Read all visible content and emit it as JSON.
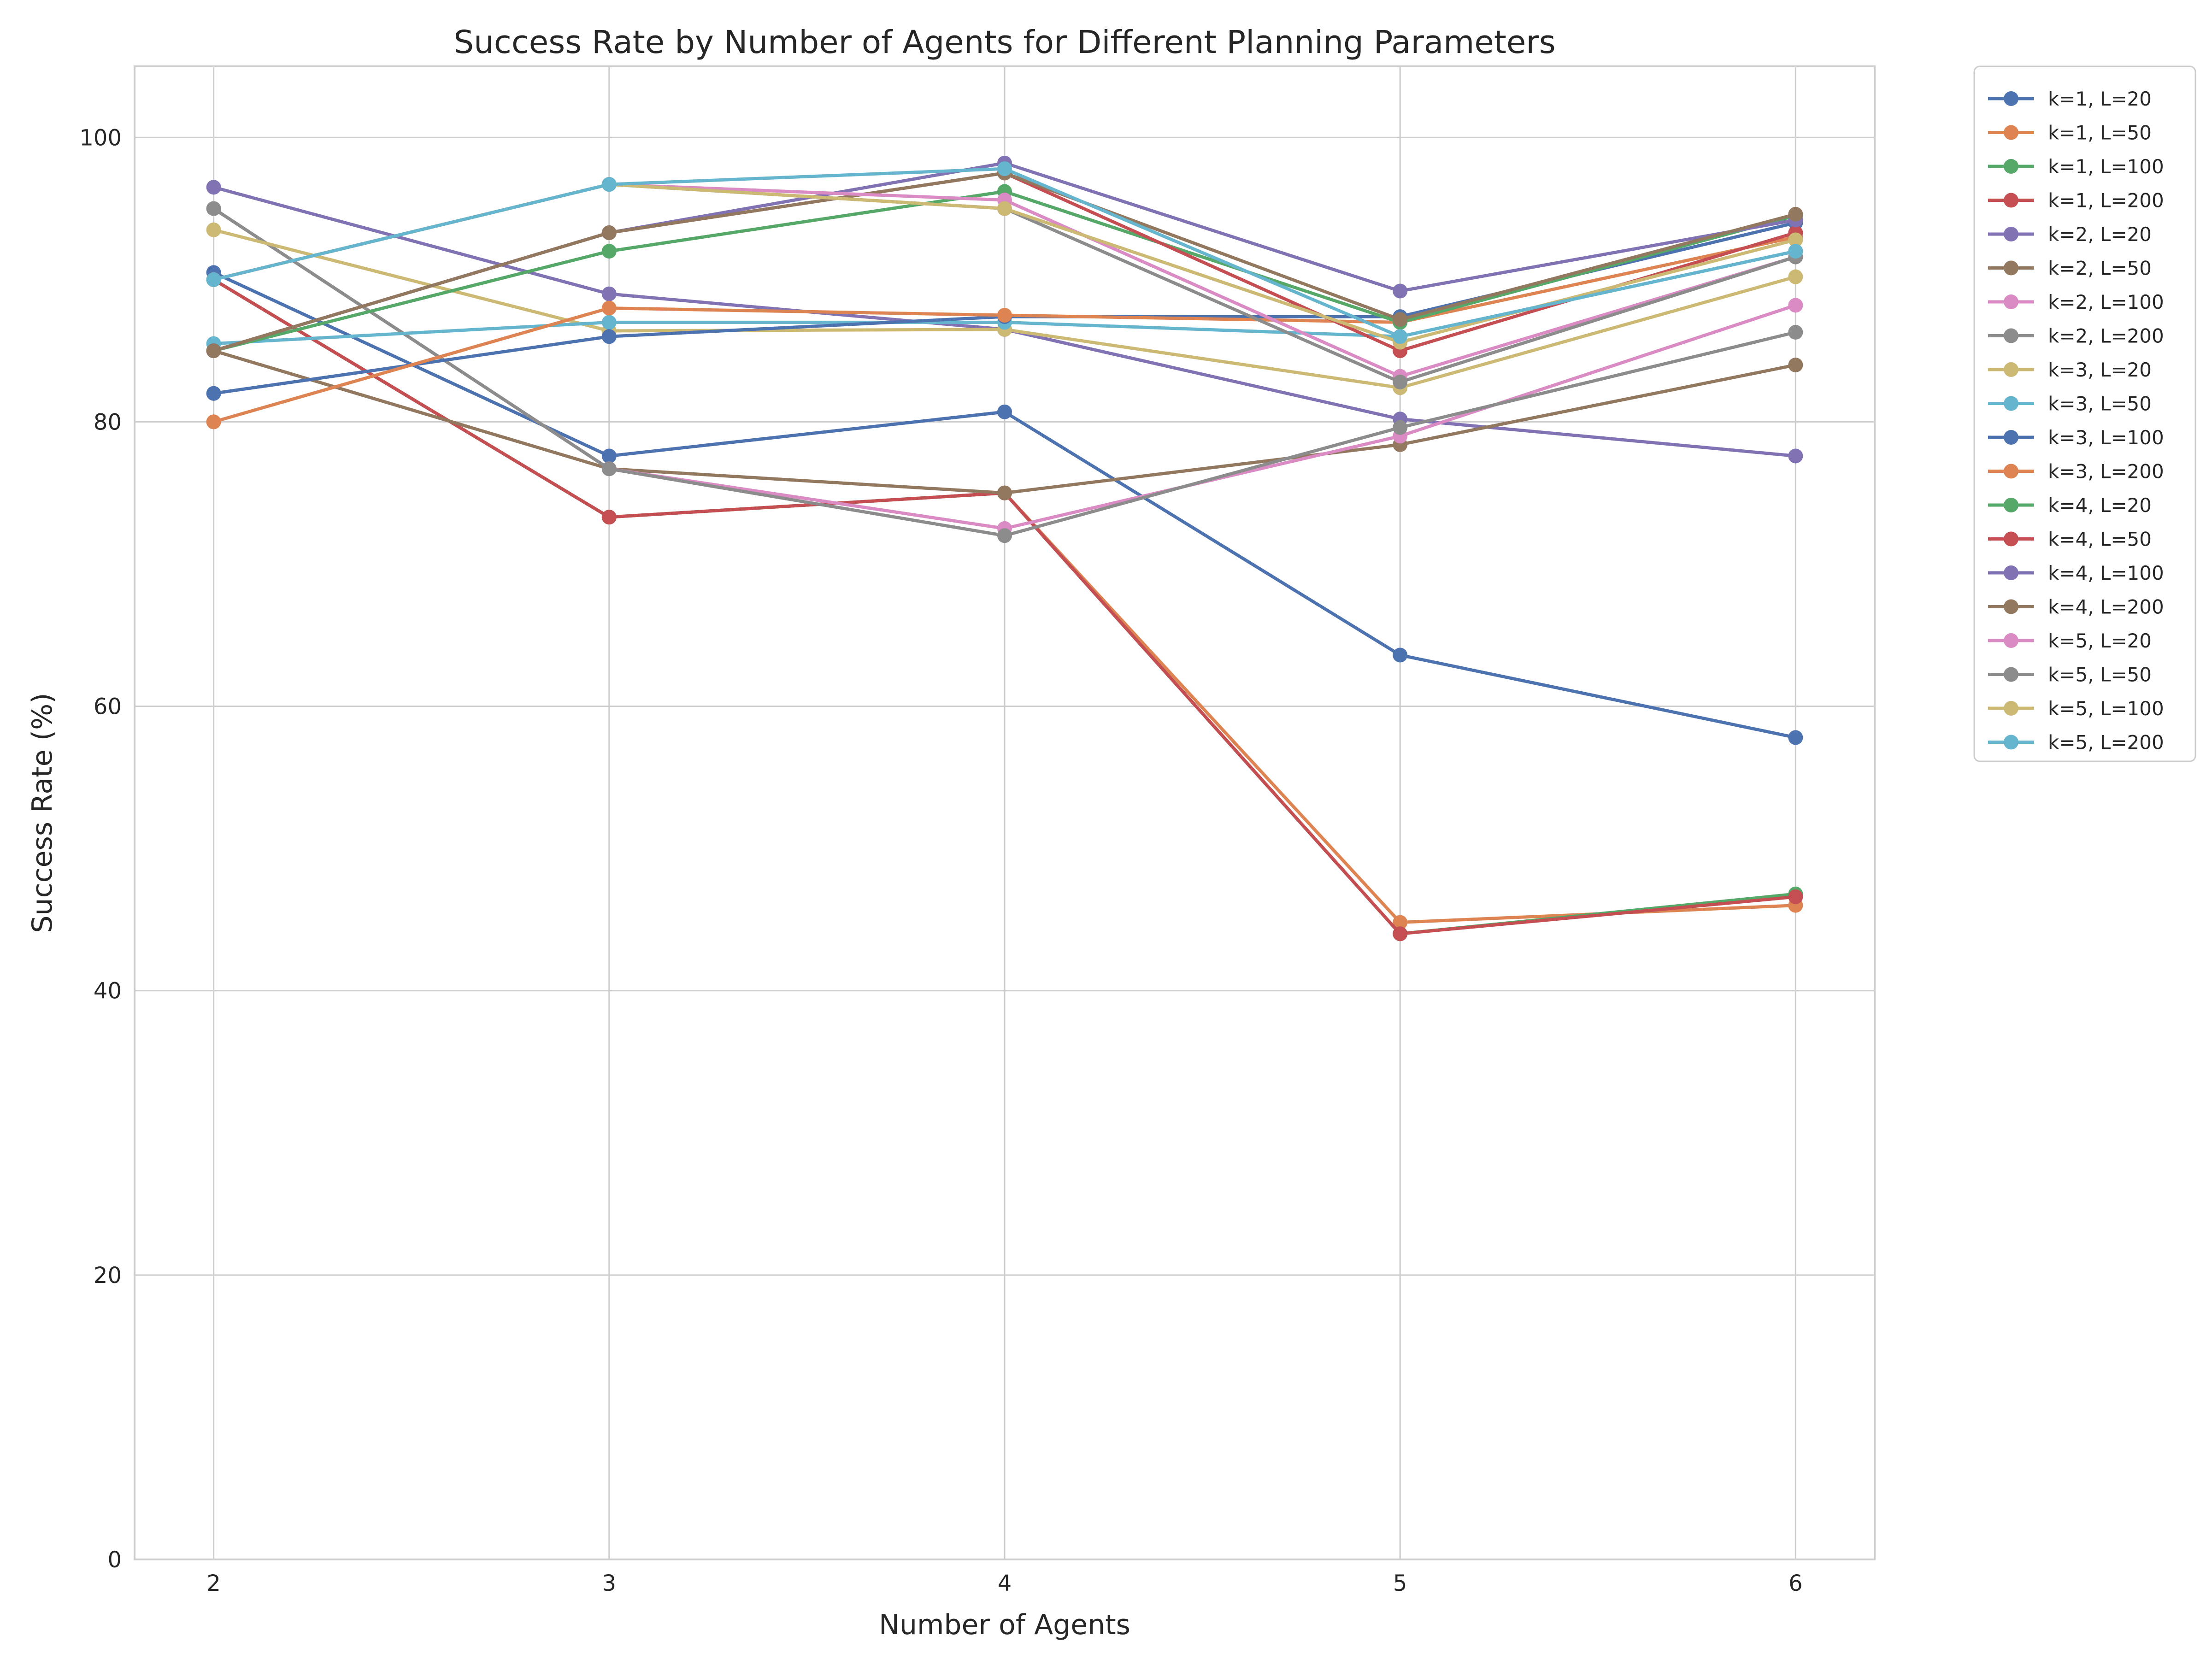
{
  "chart_data": {
    "type": "line",
    "title": "Success Rate by Number of Agents for Different Planning Parameters",
    "xlabel": "Number of Agents",
    "ylabel": "Success Rate (%)",
    "x": [
      2,
      3,
      4,
      5,
      6
    ],
    "x_tick_labels": [
      "2",
      "3",
      "4",
      "5",
      "6"
    ],
    "y_ticks": [
      0,
      20,
      40,
      60,
      80,
      100
    ],
    "y_tick_labels": [
      "0",
      "20",
      "40",
      "60",
      "80",
      "100"
    ],
    "xlim": [
      1.8,
      6.2
    ],
    "ylim": [
      0,
      105
    ],
    "grid": true,
    "legend_position": "outside-top-right",
    "series": [
      {
        "name": "k=1, L=20",
        "color": "#4c72b0",
        "values": [
          90.5,
          77.6,
          80.7,
          63.6,
          57.8
        ]
      },
      {
        "name": "k=1, L=50",
        "color": "#dd8452",
        "values": [
          90.0,
          73.3,
          75.0,
          44.8,
          46.0
        ]
      },
      {
        "name": "k=1, L=100",
        "color": "#55a868",
        "values": [
          90.0,
          73.3,
          75.0,
          44.0,
          46.8
        ]
      },
      {
        "name": "k=1, L=200",
        "color": "#c44e52",
        "values": [
          90.0,
          73.3,
          75.0,
          44.0,
          46.6
        ]
      },
      {
        "name": "k=2, L=20",
        "color": "#8172b3",
        "values": [
          96.5,
          89.0,
          86.5,
          80.2,
          77.6
        ]
      },
      {
        "name": "k=2, L=50",
        "color": "#937860",
        "values": [
          85.0,
          76.7,
          75.0,
          78.4,
          84.0
        ]
      },
      {
        "name": "k=2, L=100",
        "color": "#da8bc3",
        "values": [
          95.0,
          76.7,
          72.5,
          79.0,
          88.2
        ]
      },
      {
        "name": "k=2, L=200",
        "color": "#8c8c8c",
        "values": [
          95.0,
          76.7,
          72.0,
          79.6,
          86.3
        ]
      },
      {
        "name": "k=3, L=20",
        "color": "#ccb974",
        "values": [
          93.5,
          86.4,
          86.5,
          82.4,
          90.2
        ]
      },
      {
        "name": "k=3, L=50",
        "color": "#64b5cd",
        "values": [
          85.5,
          87.0,
          87.0,
          86.0,
          92.0
        ]
      },
      {
        "name": "k=3, L=100",
        "color": "#4c72b0",
        "values": [
          82.0,
          86.0,
          87.4,
          87.4,
          94.0
        ]
      },
      {
        "name": "k=3, L=200",
        "color": "#dd8452",
        "values": [
          80.0,
          88.0,
          87.5,
          87.0,
          93.0
        ]
      },
      {
        "name": "k=4, L=20",
        "color": "#55a868",
        "values": [
          85.0,
          92.0,
          96.2,
          87.0,
          94.5
        ]
      },
      {
        "name": "k=4, L=50",
        "color": "#c44e52",
        "values": [
          85.0,
          93.3,
          97.5,
          85.0,
          93.3
        ]
      },
      {
        "name": "k=4, L=100",
        "color": "#8172b3",
        "values": [
          85.0,
          93.3,
          98.2,
          89.2,
          94.2
        ]
      },
      {
        "name": "k=4, L=200",
        "color": "#937860",
        "values": [
          85.0,
          93.3,
          97.5,
          87.2,
          94.6
        ]
      },
      {
        "name": "k=5, L=20",
        "color": "#da8bc3",
        "values": [
          90.0,
          96.7,
          95.6,
          83.2,
          91.6
        ]
      },
      {
        "name": "k=5, L=50",
        "color": "#8c8c8c",
        "values": [
          90.0,
          96.7,
          95.0,
          82.8,
          91.6
        ]
      },
      {
        "name": "k=5, L=100",
        "color": "#ccb974",
        "values": [
          90.0,
          96.7,
          95.0,
          85.6,
          92.8
        ]
      },
      {
        "name": "k=5, L=200",
        "color": "#64b5cd",
        "values": [
          90.0,
          96.7,
          97.8,
          86.0,
          92.0
        ]
      }
    ]
  }
}
